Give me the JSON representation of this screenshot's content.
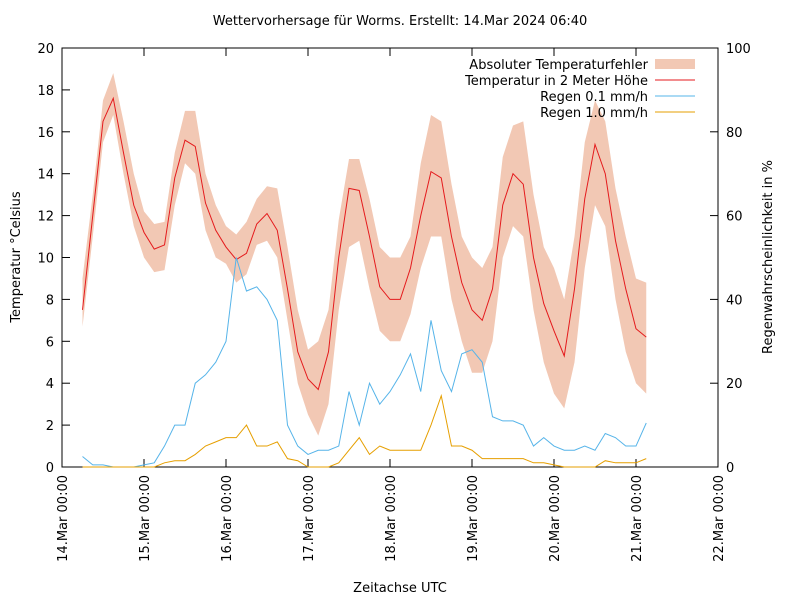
{
  "chart_data": {
    "type": "line",
    "title": "Wettervorhersage für Worms. Erstellt: 14.Mar 2024 06:40",
    "xlabel": "Zeitachse UTC",
    "ylabel": "Temperatur °Celsius",
    "y2label": "Regenwahrscheinlichkeit in %",
    "legend": "upper right",
    "x": [
      "14.Mar 06:00",
      "14.Mar 09:00",
      "14.Mar 12:00",
      "14.Mar 15:00",
      "14.Mar 18:00",
      "14.Mar 21:00",
      "15.Mar 00:00",
      "15.Mar 03:00",
      "15.Mar 06:00",
      "15.Mar 09:00",
      "15.Mar 12:00",
      "15.Mar 15:00",
      "15.Mar 18:00",
      "15.Mar 21:00",
      "16.Mar 00:00",
      "16.Mar 03:00",
      "16.Mar 06:00",
      "16.Mar 09:00",
      "16.Mar 12:00",
      "16.Mar 15:00",
      "16.Mar 18:00",
      "16.Mar 21:00",
      "17.Mar 00:00",
      "17.Mar 03:00",
      "17.Mar 06:00",
      "17.Mar 09:00",
      "17.Mar 12:00",
      "17.Mar 15:00",
      "17.Mar 18:00",
      "17.Mar 21:00",
      "18.Mar 00:00",
      "18.Mar 03:00",
      "18.Mar 06:00",
      "18.Mar 09:00",
      "18.Mar 12:00",
      "18.Mar 15:00",
      "18.Mar 18:00",
      "18.Mar 21:00",
      "19.Mar 00:00",
      "19.Mar 03:00",
      "19.Mar 06:00",
      "19.Mar 09:00",
      "19.Mar 12:00",
      "19.Mar 15:00",
      "19.Mar 18:00",
      "19.Mar 21:00",
      "20.Mar 00:00",
      "20.Mar 03:00",
      "20.Mar 06:00",
      "20.Mar 09:00",
      "20.Mar 12:00",
      "20.Mar 15:00",
      "20.Mar 18:00",
      "20.Mar 21:00",
      "21.Mar 00:00",
      "21.Mar 03:00"
    ],
    "xlim": [
      "14.Mar 00:00",
      "22.Mar 00:00"
    ],
    "xticks": [
      "14.Mar 00:00",
      "15.Mar 00:00",
      "16.Mar 00:00",
      "17.Mar 00:00",
      "18.Mar 00:00",
      "19.Mar 00:00",
      "20.Mar 00:00",
      "21.Mar 00:00",
      "22.Mar 00:00"
    ],
    "ylim": [
      0,
      20
    ],
    "yticks": [
      0,
      2,
      4,
      6,
      8,
      10,
      12,
      14,
      16,
      18,
      20
    ],
    "y2lim": [
      0,
      100
    ],
    "y2ticks": [
      0,
      20,
      40,
      60,
      80,
      100
    ],
    "band": {
      "name": "Absoluter Temperaturfehler",
      "color": "#f2c8b4",
      "lower": [
        6.7,
        11,
        15.5,
        16.8,
        14,
        11.5,
        10,
        9.3,
        9.4,
        12.5,
        14.5,
        14,
        11.3,
        10,
        9.7,
        8.8,
        9.2,
        10.6,
        10.8,
        10,
        7,
        4,
        2.5,
        1.5,
        3,
        7.5,
        10.5,
        10.8,
        8.5,
        6.5,
        6,
        6,
        7.3,
        9.5,
        11,
        11,
        8,
        6,
        4.5,
        4.5,
        6,
        10,
        11.5,
        11,
        7.5,
        5,
        3.5,
        2.8,
        5,
        9.5,
        12.5,
        11.5,
        8,
        5.5,
        4,
        3.5
      ],
      "upper": [
        9,
        13,
        17.5,
        18.8,
        16.5,
        14,
        12.2,
        11.6,
        11.7,
        15,
        17,
        17,
        14,
        12.5,
        11.5,
        11.1,
        11.7,
        12.8,
        13.4,
        13.3,
        10.5,
        7.5,
        5.6,
        6,
        7.5,
        11.8,
        14.7,
        14.7,
        12.8,
        10.5,
        10,
        10,
        11,
        14.5,
        16.8,
        16.5,
        13.5,
        11,
        10,
        9.5,
        10.5,
        14.8,
        16.3,
        16.5,
        13,
        10.5,
        9.5,
        8,
        11,
        15.5,
        17.5,
        16.5,
        13.3,
        11,
        9,
        8.8
      ]
    },
    "series": [
      {
        "name": "Temperatur in 2 Meter Höhe",
        "color": "#e41a1c",
        "values": [
          7.5,
          12,
          16.5,
          17.6,
          15,
          12.5,
          11.2,
          10.4,
          10.6,
          13.8,
          15.6,
          15.3,
          12.6,
          11.3,
          10.5,
          9.9,
          10.2,
          11.6,
          12.1,
          11.3,
          8.5,
          5.5,
          4.2,
          3.7,
          5.5,
          10,
          13.3,
          13.2,
          11,
          8.6,
          8,
          8,
          9.5,
          12,
          14.1,
          13.8,
          11,
          8.8,
          7.5,
          7,
          8.5,
          12.5,
          14,
          13.5,
          10,
          7.8,
          6.5,
          5.3,
          8.5,
          12.8,
          15.4,
          14,
          10.8,
          8.5,
          6.6,
          6.2
        ]
      },
      {
        "name": "Regen 0.1 mm/h",
        "color": "#56b4e9",
        "axis": "y2",
        "values": [
          2.5,
          0.5,
          0.5,
          0,
          0,
          0,
          0.5,
          1,
          5,
          10,
          10,
          20,
          22,
          25,
          30,
          50,
          42,
          43,
          40,
          35,
          10,
          5,
          3,
          4,
          4,
          5,
          18,
          10,
          20,
          15,
          18,
          22,
          27,
          18,
          35,
          23,
          18,
          27,
          28,
          25,
          12,
          11,
          11,
          10,
          5,
          7,
          5,
          4,
          4,
          5,
          4,
          8,
          7,
          5,
          5,
          10.5
        ]
      },
      {
        "name": "Regen 1.0 mm/h",
        "color": "#e69f00",
        "axis": "y2",
        "values": [
          0,
          0,
          0,
          0,
          0,
          0,
          0,
          0,
          1,
          1.5,
          1.5,
          3,
          5,
          6,
          7,
          7,
          10,
          5,
          5,
          6,
          2,
          1.5,
          0,
          0,
          0,
          1,
          4,
          7,
          3,
          5,
          4,
          4,
          4,
          4,
          10,
          17,
          5,
          5,
          4,
          2,
          2,
          2,
          2,
          2,
          1,
          1,
          0.5,
          0,
          0,
          0,
          0,
          1.5,
          1,
          1,
          1,
          2
        ]
      }
    ]
  }
}
